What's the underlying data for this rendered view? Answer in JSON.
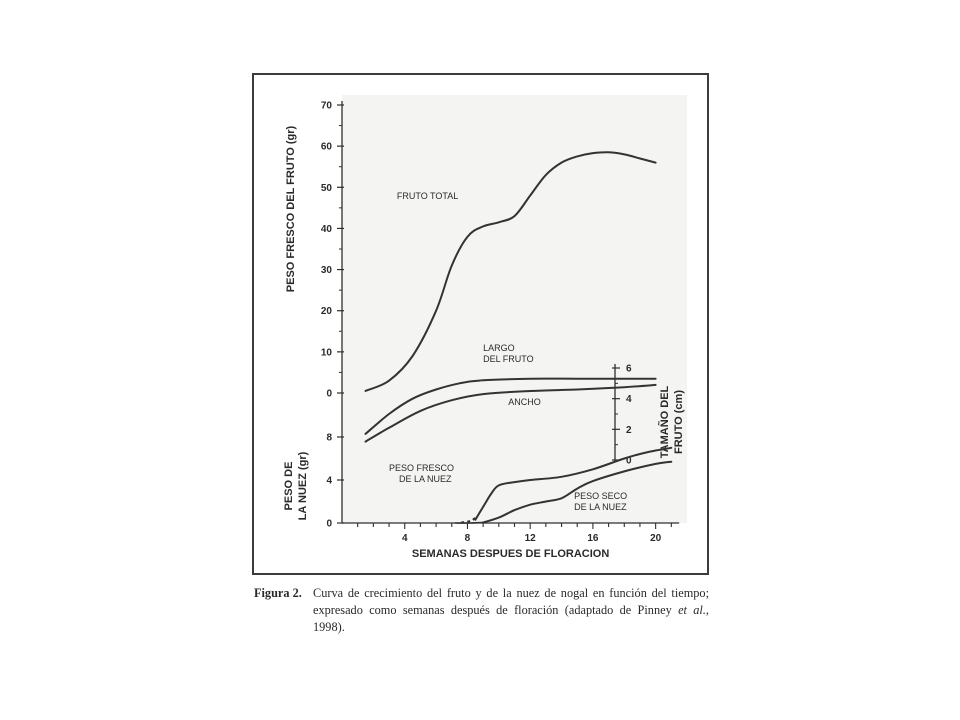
{
  "chart_data": {
    "type": "line",
    "title": "",
    "xlabel": "SEMANAS DESPUES DE FLORACION",
    "x_ticks": [
      4,
      8,
      12,
      16,
      20
    ],
    "xlim": [
      0,
      22
    ],
    "grid": false,
    "panels": [
      {
        "id": "upper",
        "ylabel": "PESO FRESCO DEL FRUTO (gr)",
        "ylim": [
          0,
          70
        ],
        "y_ticks": [
          0,
          10,
          20,
          30,
          40,
          50,
          60,
          70
        ],
        "series": [
          {
            "name": "FRUTO TOTAL",
            "points": [
              [
                1.5,
                0.5
              ],
              [
                3,
                3
              ],
              [
                4.5,
                9
              ],
              [
                6,
                20
              ],
              [
                7,
                31
              ],
              [
                8,
                38
              ],
              [
                9,
                40.5
              ],
              [
                10,
                41.5
              ],
              [
                11,
                43
              ],
              [
                12,
                48
              ],
              [
                13,
                53
              ],
              [
                14,
                56
              ],
              [
                15,
                57.5
              ],
              [
                16,
                58.3
              ],
              [
                17,
                58.5
              ],
              [
                18,
                58
              ],
              [
                19,
                57
              ],
              [
                20,
                56
              ]
            ]
          }
        ]
      },
      {
        "id": "size",
        "ylabel": "TAMAÑO DEL FRUTO (cm)",
        "ylim": [
          0,
          6
        ],
        "y_ticks": [
          0,
          2,
          4,
          6
        ],
        "series": [
          {
            "name": "LARGO DEL FRUTO",
            "points": [
              [
                1.5,
                1.7
              ],
              [
                3,
                3
              ],
              [
                4.5,
                4
              ],
              [
                6,
                4.6
              ],
              [
                7.5,
                5.0
              ],
              [
                9,
                5.2
              ],
              [
                12,
                5.3
              ],
              [
                15,
                5.3
              ],
              [
                18,
                5.3
              ],
              [
                20,
                5.3
              ]
            ]
          },
          {
            "name": "ANCHO",
            "points": [
              [
                1.5,
                1.2
              ],
              [
                3,
                2.1
              ],
              [
                5,
                3.2
              ],
              [
                7,
                3.9
              ],
              [
                9,
                4.3
              ],
              [
                12,
                4.5
              ],
              [
                15,
                4.6
              ],
              [
                18,
                4.75
              ],
              [
                20,
                4.9
              ]
            ]
          }
        ]
      },
      {
        "id": "lower",
        "ylabel": "PESO DE LA NUEZ (gr)",
        "ylim": [
          0,
          8
        ],
        "y_ticks": [
          0,
          4,
          8
        ],
        "series": [
          {
            "name": "PESO FRESCO DE LA NUEZ",
            "points": [
              [
                8.5,
                0.3
              ],
              [
                9,
                1.5
              ],
              [
                9.5,
                2.7
              ],
              [
                10,
                3.5
              ],
              [
                11,
                3.8
              ],
              [
                12,
                4.0
              ],
              [
                14,
                4.3
              ],
              [
                16,
                5.0
              ],
              [
                18,
                6.0
              ],
              [
                19.5,
                6.6
              ],
              [
                21,
                7.0
              ]
            ]
          },
          {
            "name": "PESO SECO DE LA NUEZ",
            "points": [
              [
                9,
                0.05
              ],
              [
                10,
                0.5
              ],
              [
                11,
                1.2
              ],
              [
                12,
                1.7
              ],
              [
                13,
                2.0
              ],
              [
                14,
                2.3
              ],
              [
                15,
                3.2
              ],
              [
                16,
                3.9
              ],
              [
                18,
                4.8
              ],
              [
                20,
                5.5
              ],
              [
                21,
                5.7
              ]
            ]
          }
        ]
      }
    ],
    "annotations": [
      {
        "series": "FRUTO TOTAL",
        "text": "FRUTO TOTAL"
      },
      {
        "series": "LARGO DEL FRUTO",
        "text": [
          "LARGO",
          "DEL FRUTO"
        ]
      },
      {
        "series": "ANCHO",
        "text": "ANCHO"
      },
      {
        "series": "PESO FRESCO DE LA NUEZ",
        "text": [
          "PESO FRESCO",
          "DE LA NUEZ"
        ]
      },
      {
        "series": "PESO SECO DE LA NUEZ",
        "text": [
          "PESO SECO",
          "DE LA NUEZ"
        ]
      }
    ]
  },
  "caption": {
    "label": "Figura 2.",
    "text_before_italic": "Curva de crecimiento del fruto y de la nuez de nogal en función del tiempo; expresado como semanas después de floración (adaptado de Pinney ",
    "italic": "et al.",
    "text_after_italic": ", 1998)."
  }
}
